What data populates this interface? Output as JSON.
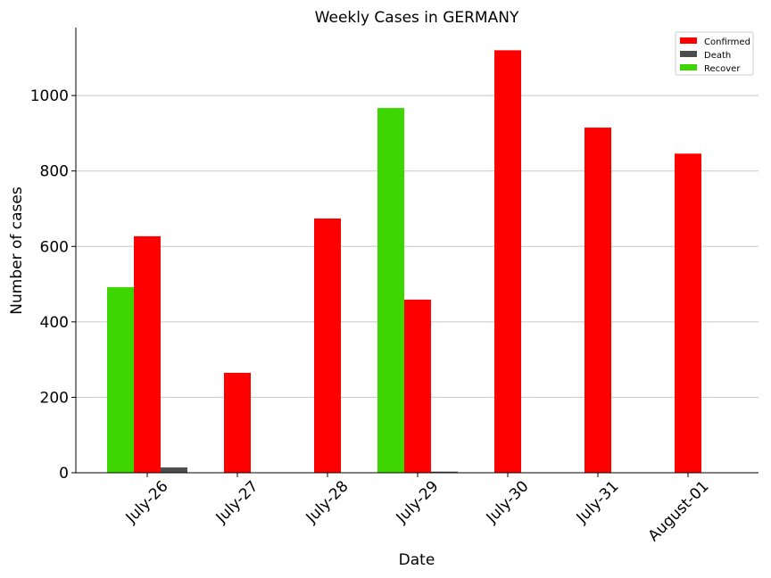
{
  "chart_data": {
    "type": "bar",
    "title": "Weekly Cases in GERMANY",
    "xlabel": "Date",
    "ylabel": "Number of cases",
    "categories": [
      "July-26",
      "July-27",
      "July-28",
      "July-29",
      "July-30",
      "July-31",
      "August-01"
    ],
    "series": [
      {
        "name": "Recover",
        "color": "#3dd600",
        "values": [
          492,
          0,
          0,
          967,
          0,
          0,
          0
        ]
      },
      {
        "name": "Confirmed",
        "color": "#ff0000",
        "values": [
          627,
          265,
          674,
          459,
          1120,
          915,
          846
        ]
      },
      {
        "name": "Death",
        "color": "#4d4d4d",
        "values": [
          14,
          0,
          0,
          3,
          0,
          0,
          0
        ]
      }
    ],
    "legend_order": [
      "Confirmed",
      "Death",
      "Recover"
    ],
    "ylim": [
      0,
      1180
    ],
    "yticks": [
      0,
      200,
      400,
      600,
      800,
      1000
    ],
    "grid": "horizontal",
    "legend_position": "top-right"
  }
}
